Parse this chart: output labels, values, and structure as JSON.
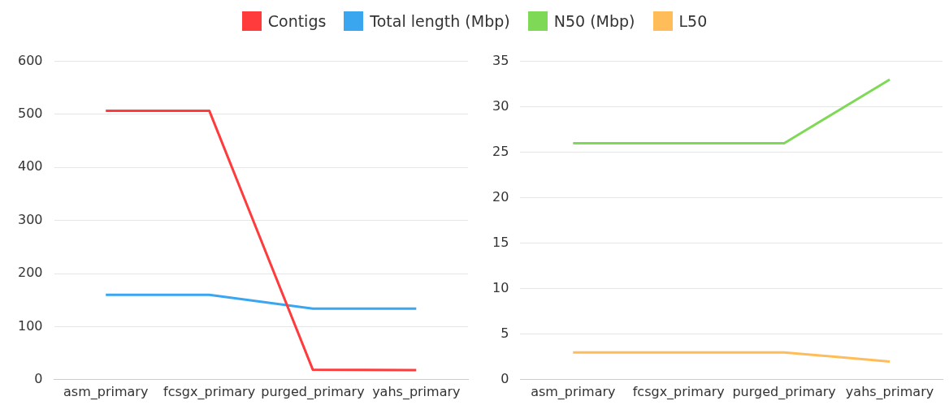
{
  "chart_data": [
    {
      "type": "line",
      "categories": [
        "asm_primary",
        "fcsgx_primary",
        "purged_primary",
        "yahs_primary"
      ],
      "series": [
        {
          "name": "Contigs",
          "color": "#ff3b3b",
          "values": [
            507,
            507,
            19,
            18
          ]
        },
        {
          "name": "Total length (Mbp)",
          "color": "#3aa6f0",
          "values": [
            160,
            160,
            134,
            134
          ]
        }
      ],
      "ylim": [
        0,
        600
      ],
      "yticks": [
        0,
        100,
        200,
        300,
        400,
        500,
        600
      ],
      "grid": "y",
      "legend": "top",
      "line_style": "solid"
    },
    {
      "type": "line",
      "categories": [
        "asm_primary",
        "fcsgx_primary",
        "purged_primary",
        "yahs_primary"
      ],
      "series": [
        {
          "name": "N50 (Mbp)",
          "color": "#7ed957",
          "values": [
            26,
            26,
            26,
            33
          ]
        },
        {
          "name": "L50",
          "color": "#ffbd59",
          "values": [
            3,
            3,
            3,
            2
          ]
        }
      ],
      "ylim": [
        0,
        35
      ],
      "yticks": [
        0,
        5,
        10,
        15,
        20,
        25,
        30,
        35
      ],
      "grid": "y",
      "legend": "top",
      "line_style": "solid"
    }
  ]
}
